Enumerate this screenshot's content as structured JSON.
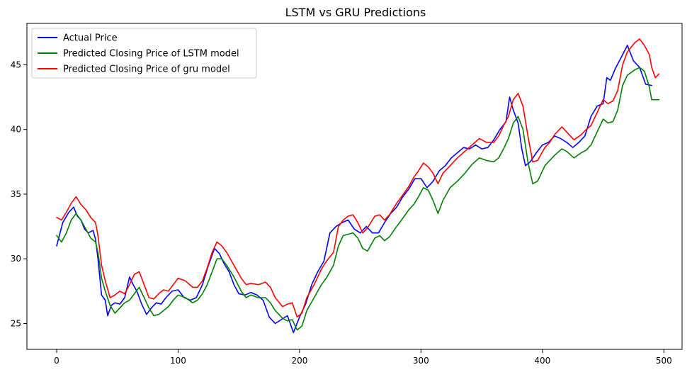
{
  "chart_data": {
    "type": "line",
    "title": "LSTM vs GRU Predictions",
    "xlabel": "",
    "ylabel": "",
    "xlim": [
      -24.5,
      515
    ],
    "ylim": [
      23.0,
      48.2
    ],
    "x_ticks": [
      0,
      100,
      200,
      300,
      400,
      500
    ],
    "x_tick_labels": [
      "0",
      "100",
      "200",
      "300",
      "400",
      "500"
    ],
    "y_ticks": [
      25,
      30,
      35,
      40,
      45
    ],
    "y_tick_labels": [
      "25",
      "30",
      "35",
      "40",
      "45"
    ],
    "grid": false,
    "legend_position": "top-left",
    "series": [
      {
        "name": "Actual Price",
        "color": "#0000ff",
        "x": [
          0,
          5,
          10,
          14,
          17,
          20,
          23,
          26,
          30,
          32,
          34,
          37,
          40,
          42,
          45,
          48,
          52,
          56,
          60,
          63,
          66,
          70,
          74,
          78,
          82,
          86,
          90,
          95,
          100,
          105,
          110,
          115,
          120,
          125,
          130,
          134,
          138,
          142,
          146,
          150,
          155,
          160,
          165,
          170,
          175,
          180,
          185,
          190,
          195,
          200,
          205,
          210,
          215,
          220,
          225,
          230,
          235,
          240,
          245,
          250,
          255,
          260,
          265,
          270,
          275,
          280,
          285,
          290,
          295,
          300,
          305,
          310,
          315,
          320,
          325,
          330,
          335,
          340,
          345,
          350,
          355,
          360,
          365,
          370,
          373,
          376,
          380,
          383,
          386,
          390,
          395,
          400,
          405,
          410,
          415,
          420,
          425,
          430,
          435,
          440,
          445,
          450,
          453,
          456,
          460,
          465,
          470,
          475,
          480,
          485,
          490
        ],
        "values": [
          31.0,
          32.8,
          33.6,
          34.0,
          33.3,
          33.0,
          32.3,
          32.0,
          32.2,
          31.5,
          30.0,
          27.2,
          26.8,
          25.6,
          26.4,
          26.6,
          26.5,
          27.0,
          28.6,
          28.0,
          27.5,
          26.5,
          25.7,
          26.2,
          26.6,
          26.5,
          27.0,
          27.5,
          27.6,
          27.0,
          26.8,
          27.0,
          28.0,
          29.5,
          30.8,
          30.4,
          29.6,
          29.0,
          28.0,
          27.3,
          27.2,
          27.4,
          27.2,
          26.8,
          25.5,
          25.0,
          25.3,
          25.6,
          24.3,
          25.5,
          26.5,
          28.0,
          29.0,
          29.8,
          32.0,
          32.5,
          32.8,
          33.0,
          32.3,
          32.0,
          32.5,
          32.0,
          32.0,
          32.8,
          33.5,
          34.0,
          34.8,
          35.4,
          36.2,
          36.2,
          35.5,
          36.0,
          36.8,
          37.2,
          37.8,
          38.2,
          38.6,
          38.5,
          38.8,
          38.5,
          38.6,
          39.2,
          40.0,
          40.6,
          42.5,
          41.5,
          40.5,
          38.5,
          37.2,
          37.5,
          38.2,
          38.8,
          39.0,
          39.5,
          39.3,
          39.0,
          38.6,
          39.0,
          39.5,
          41.0,
          41.8,
          42.0,
          44.0,
          43.8,
          44.7,
          45.6,
          46.5,
          45.3,
          44.8,
          43.5,
          43.4
        ]
      },
      {
        "name": "Predicted Closing Price of LSTM model",
        "color": "#008000",
        "x": [
          0,
          4,
          8,
          12,
          16,
          20,
          24,
          28,
          32,
          34,
          37,
          40,
          44,
          48,
          52,
          56,
          60,
          64,
          68,
          72,
          76,
          80,
          84,
          88,
          92,
          96,
          100,
          106,
          112,
          116,
          120,
          124,
          128,
          132,
          136,
          140,
          146,
          152,
          156,
          160,
          166,
          172,
          176,
          180,
          186,
          190,
          194,
          198,
          202,
          206,
          212,
          218,
          222,
          228,
          232,
          236,
          240,
          244,
          248,
          252,
          256,
          262,
          266,
          270,
          274,
          280,
          284,
          290,
          294,
          298,
          302,
          306,
          310,
          314,
          318,
          324,
          330,
          336,
          342,
          348,
          354,
          360,
          364,
          368,
          372,
          376,
          380,
          384,
          388,
          392,
          396,
          402,
          406,
          410,
          416,
          420,
          426,
          432,
          436,
          440,
          446,
          450,
          454,
          458,
          462,
          466,
          470,
          476,
          480,
          484,
          488,
          490
        ],
        "values": [
          31.8,
          31.3,
          32.0,
          33.0,
          33.5,
          33.0,
          32.3,
          31.6,
          31.3,
          30.5,
          28.5,
          27.5,
          26.4,
          25.8,
          26.2,
          26.6,
          26.8,
          27.3,
          27.8,
          27.0,
          26.2,
          25.6,
          25.7,
          26.0,
          26.3,
          26.8,
          27.2,
          27.0,
          26.6,
          26.8,
          27.3,
          28.0,
          29.0,
          30.0,
          30.0,
          29.5,
          28.6,
          27.5,
          27.0,
          27.2,
          27.0,
          27.0,
          26.6,
          26.0,
          25.4,
          25.2,
          25.3,
          24.5,
          24.8,
          26.0,
          27.0,
          28.0,
          28.5,
          29.5,
          31.0,
          31.8,
          31.9,
          32.0,
          31.6,
          30.8,
          30.6,
          31.6,
          31.8,
          31.4,
          31.7,
          32.5,
          33.0,
          33.8,
          34.2,
          34.8,
          35.5,
          35.3,
          34.5,
          33.5,
          34.5,
          35.5,
          36.0,
          36.6,
          37.3,
          37.8,
          37.6,
          37.5,
          37.8,
          38.5,
          39.3,
          40.5,
          41.0,
          40.0,
          37.5,
          35.8,
          36.0,
          37.2,
          37.6,
          38.0,
          38.5,
          38.3,
          37.8,
          38.2,
          38.4,
          38.8,
          40.0,
          40.8,
          40.5,
          40.6,
          41.5,
          43.4,
          44.2,
          44.6,
          44.8,
          44.5,
          43.3,
          42.3
        ],
        "extra_x": [
          496
        ],
        "extra_values": [
          42.3
        ]
      },
      {
        "name": "Predicted Closing Price of gru model",
        "color": "#ff0000",
        "x": [
          0,
          4,
          8,
          12,
          16,
          20,
          24,
          28,
          32,
          34,
          37,
          40,
          44,
          48,
          52,
          56,
          60,
          64,
          68,
          72,
          76,
          80,
          84,
          88,
          92,
          96,
          100,
          106,
          112,
          116,
          120,
          124,
          128,
          132,
          136,
          140,
          146,
          152,
          156,
          160,
          166,
          172,
          176,
          180,
          186,
          190,
          194,
          198,
          202,
          206,
          212,
          218,
          222,
          228,
          232,
          236,
          240,
          244,
          248,
          252,
          256,
          262,
          266,
          270,
          274,
          280,
          284,
          290,
          294,
          298,
          302,
          306,
          310,
          314,
          318,
          324,
          330,
          336,
          342,
          348,
          354,
          360,
          364,
          368,
          372,
          376,
          380,
          384,
          388,
          392,
          396,
          402,
          406,
          410,
          416,
          420,
          426,
          432,
          436,
          440,
          446,
          450,
          454,
          458,
          462,
          466,
          470,
          476,
          480,
          484,
          488,
          490
        ],
        "values": [
          33.2,
          33.0,
          33.6,
          34.3,
          34.8,
          34.2,
          33.8,
          33.2,
          32.8,
          31.8,
          29.5,
          28.3,
          27.0,
          27.2,
          27.5,
          27.3,
          28.0,
          28.8,
          29.0,
          28.0,
          27.0,
          26.9,
          27.3,
          27.6,
          27.5,
          28.0,
          28.5,
          28.3,
          27.8,
          27.8,
          28.3,
          29.3,
          30.5,
          31.3,
          31.0,
          30.5,
          29.5,
          28.5,
          28.0,
          28.1,
          28.0,
          28.2,
          27.8,
          27.0,
          26.3,
          26.5,
          26.6,
          25.5,
          25.8,
          27.0,
          28.0,
          29.2,
          29.8,
          30.5,
          32.5,
          33.0,
          33.3,
          33.4,
          32.8,
          32.0,
          32.4,
          33.3,
          33.4,
          33.0,
          33.4,
          34.3,
          34.8,
          35.6,
          36.3,
          36.8,
          37.4,
          37.1,
          36.6,
          35.8,
          36.6,
          37.2,
          37.8,
          38.3,
          38.8,
          39.3,
          39.0,
          39.0,
          39.5,
          40.3,
          41.0,
          42.3,
          42.8,
          41.8,
          39.5,
          37.5,
          37.6,
          38.6,
          39.0,
          39.6,
          40.2,
          39.8,
          39.2,
          39.6,
          40.0,
          40.3,
          41.5,
          42.3,
          42.0,
          42.2,
          43.0,
          45.0,
          46.0,
          46.7,
          47.0,
          46.5,
          45.8,
          44.8
        ],
        "extra_x": [
          493,
          496
        ],
        "extra_values": [
          44.0,
          44.3
        ]
      }
    ]
  }
}
